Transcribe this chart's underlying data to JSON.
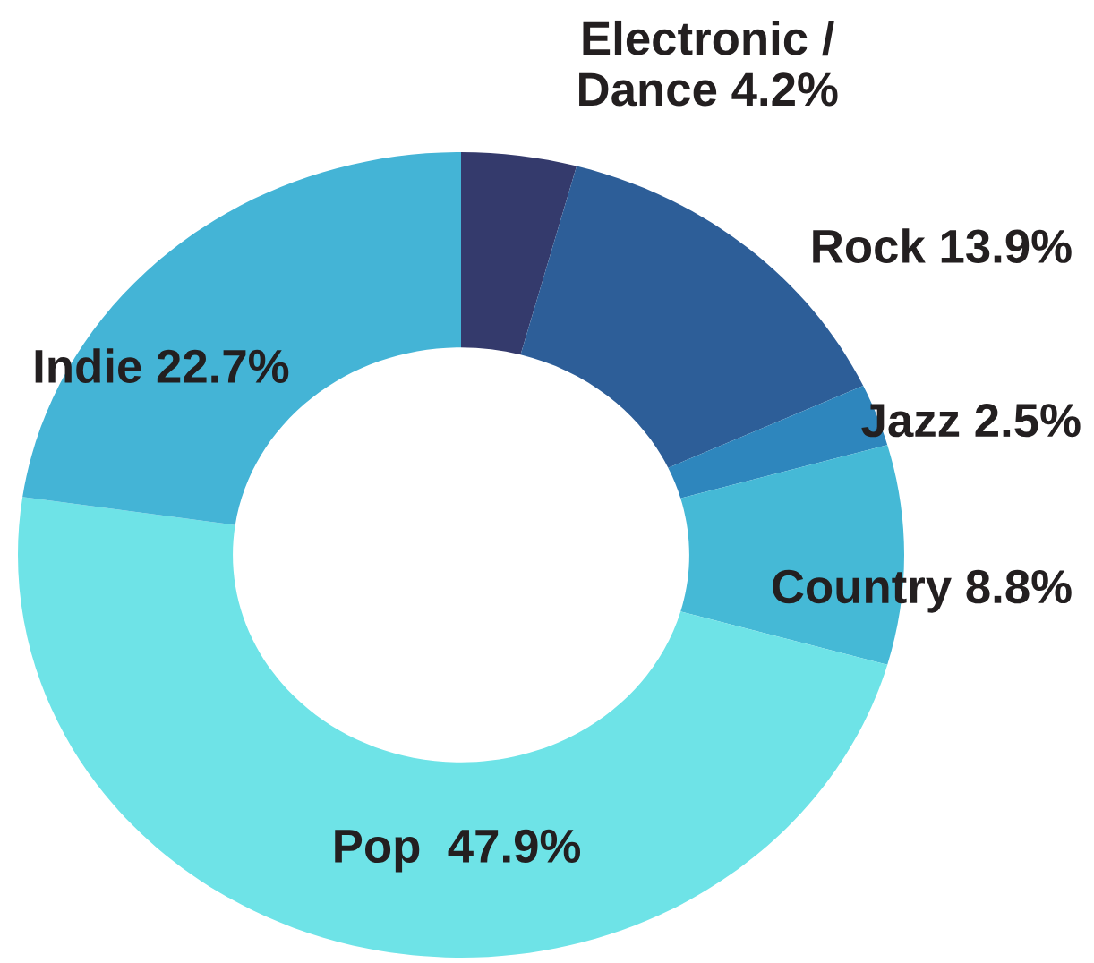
{
  "chart_data": {
    "type": "donut",
    "categories": [
      "Electronic /\nDance",
      "Rock",
      "Jazz",
      "Country",
      "Pop ",
      "Indie"
    ],
    "values": [
      4.2,
      13.9,
      2.5,
      8.8,
      47.9,
      22.7
    ],
    "value_labels": [
      "4.2%",
      "13.9%",
      "2.5%",
      "8.8%",
      "47.9%",
      "22.7%"
    ],
    "colors": [
      "#343a6c",
      "#2d5e98",
      "#2e86bd",
      "#45b9d6",
      "#6ee3e7",
      "#44b4d6"
    ],
    "legend": false
  }
}
